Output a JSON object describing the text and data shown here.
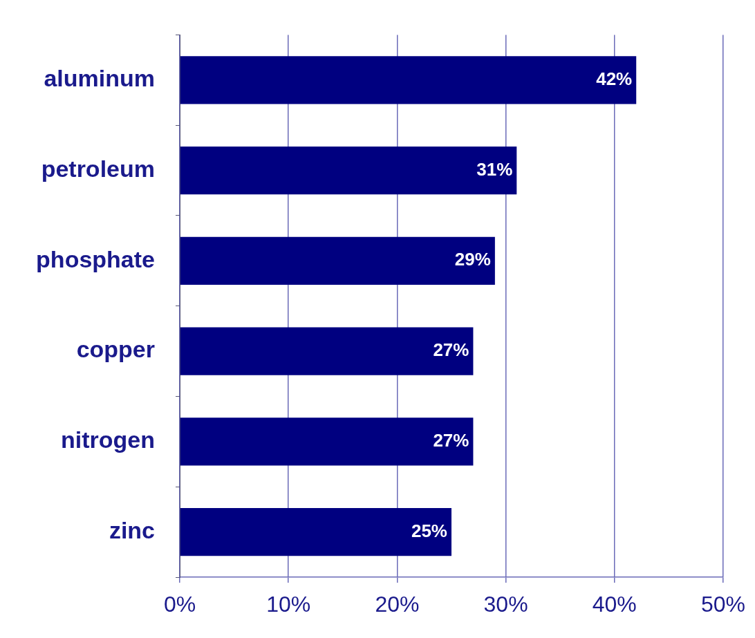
{
  "chart_data": {
    "type": "bar",
    "orientation": "horizontal",
    "categories": [
      "aluminum",
      "petroleum",
      "phosphate",
      "copper",
      "nitrogen",
      "zinc"
    ],
    "values": [
      42,
      31,
      29,
      27,
      27,
      25
    ],
    "value_labels": [
      "42%",
      "31%",
      "29%",
      "27%",
      "27%",
      "25%"
    ],
    "color": "#000080",
    "xlim": [
      0,
      50
    ],
    "xticks": [
      {
        "value": 0,
        "label": "0%"
      },
      {
        "value": 10,
        "label": "10%"
      },
      {
        "value": 20,
        "label": "20%"
      },
      {
        "value": 30,
        "label": "30%"
      },
      {
        "value": 40,
        "label": "40%"
      },
      {
        "value": 50,
        "label": "50%"
      }
    ],
    "grid": "x",
    "legend": false
  }
}
